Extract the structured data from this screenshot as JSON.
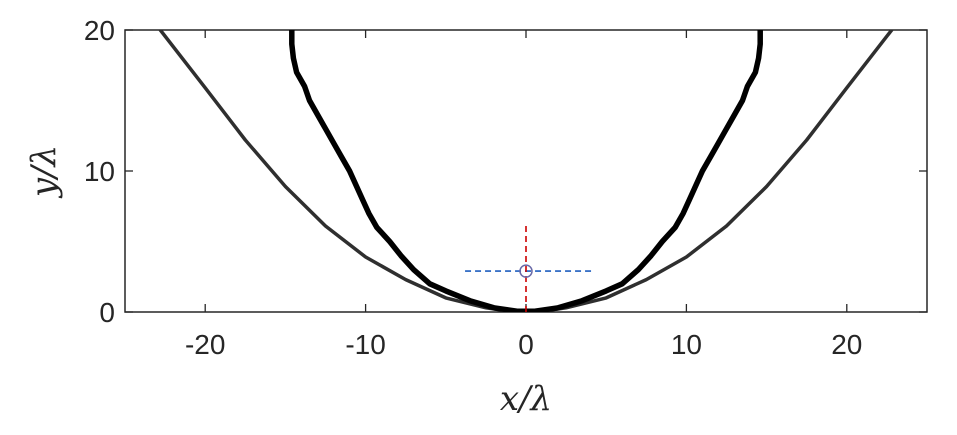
{
  "chart_data": {
    "type": "line",
    "title": "",
    "xlabel": "x/λ",
    "ylabel": "y/λ",
    "xlim": [
      -25,
      25
    ],
    "ylim": [
      0,
      20
    ],
    "xticks": [
      -20,
      -10,
      0,
      10,
      20
    ],
    "yticks": [
      0,
      10,
      20
    ],
    "grid": false,
    "legend": "none",
    "series": [
      {
        "style": "solid-thin",
        "color": "#2f2f2f",
        "x": [
          -22.8,
          -20,
          -17.5,
          -15,
          -12.5,
          -10,
          -7.5,
          -5,
          -2.5,
          -1,
          0,
          1,
          2.5,
          5,
          7.5,
          10,
          12.5,
          15,
          17.5,
          20,
          22.8
        ],
        "y": [
          20,
          15.9,
          12.2,
          8.9,
          6.1,
          3.9,
          2.3,
          1.0,
          0.3,
          0.05,
          0,
          0.05,
          0.3,
          1.0,
          2.3,
          3.9,
          6.1,
          8.9,
          12.2,
          15.9,
          20
        ]
      },
      {
        "style": "solid-thick-jagged",
        "color": "#000000",
        "x": [
          -14.6,
          -14.6,
          -14.5,
          -14.3,
          -13.8,
          -13.5,
          -13.0,
          -12.5,
          -12.0,
          -11.5,
          -11.0,
          -10.6,
          -10.2,
          -9.8,
          -9.3,
          -8.5,
          -7.8,
          -7.0,
          -6.0,
          -5.0,
          -3.5,
          -2.0,
          -0.5,
          0.5,
          2.0,
          3.5,
          5.0,
          6.0,
          7.0,
          7.8,
          8.5,
          9.3,
          9.8,
          10.2,
          10.6,
          11.0,
          11.5,
          12.0,
          12.5,
          13.0,
          13.5,
          13.8,
          14.3,
          14.5,
          14.6,
          14.6
        ],
        "y": [
          20,
          19.0,
          18.0,
          17.0,
          16.0,
          15.0,
          14.0,
          13.0,
          12.0,
          11.0,
          10.0,
          9.0,
          8.0,
          7.0,
          6.0,
          5.0,
          4.0,
          3.0,
          2.0,
          1.5,
          0.8,
          0.3,
          0.05,
          0.05,
          0.3,
          0.8,
          1.5,
          2.0,
          3.0,
          4.0,
          5.0,
          6.0,
          7.0,
          8.0,
          9.0,
          10.0,
          11.0,
          12.0,
          13.0,
          14.0,
          15.0,
          16.0,
          17.0,
          18.0,
          19.0,
          20
        ]
      }
    ],
    "annotations": [
      {
        "type": "circle-marker",
        "x": 0,
        "y": 2.9,
        "color": "#6a6aa8"
      },
      {
        "type": "dashed-horizontal",
        "x": [
          -3.8,
          4.2
        ],
        "y": 2.9,
        "color": "#1f5fbf"
      },
      {
        "type": "dashed-vertical",
        "x": 0,
        "y": [
          0,
          6.1
        ],
        "color": "#cc0000"
      }
    ]
  }
}
